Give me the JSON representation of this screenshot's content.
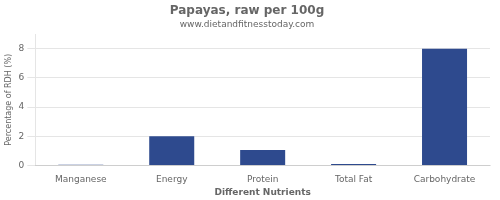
{
  "chart_data": {
    "type": "bar",
    "title": "Papayas, raw per 100g",
    "subtitle": "www.dietandfitnesstoday.com",
    "xlabel": "Different Nutrients",
    "ylabel": "Percentage of RDH (%)",
    "categories": [
      "Manganese",
      "Energy",
      "Protein",
      "Total Fat",
      "Carbohydrate"
    ],
    "values": [
      0.04,
      2.0,
      1.05,
      0.1,
      8.0
    ],
    "color": "#2E4A8E",
    "ylim": [
      0,
      9
    ],
    "yticks": [
      0,
      2,
      4,
      6,
      8
    ],
    "grid": true
  }
}
